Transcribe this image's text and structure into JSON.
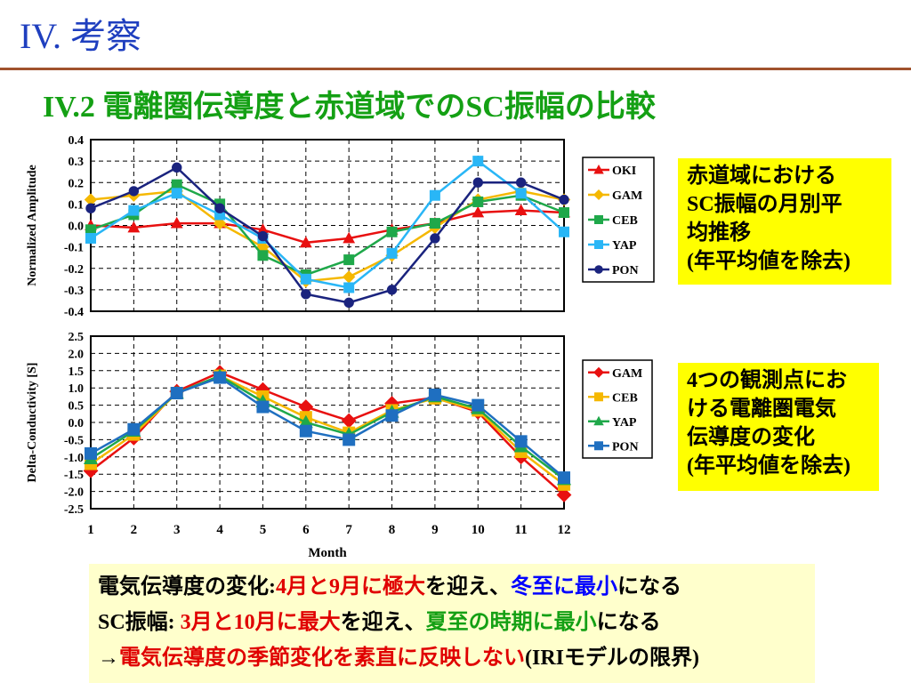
{
  "slide": {
    "title": "IV. 考察",
    "subtitle": "IV.2 電離圏伝導度と赤道域でのSC振幅の比較"
  },
  "notes": {
    "top_lines": [
      "赤道域における",
      "SC振幅の月別平",
      "均推移",
      "(年平均値を除去)"
    ],
    "bottom_lines": [
      "4つの観測点にお",
      "ける電離圏電気",
      "伝導度の変化",
      "(年平均値を除去)"
    ]
  },
  "summary": {
    "line1": {
      "p1": "電気伝導度の変化:",
      "p2": "4月と9月に極大",
      "p3": "を迎え、",
      "p4": "冬至に最小",
      "p5": "になる"
    },
    "line2": {
      "p1": "SC振幅: ",
      "p2": "3月と10月に最大",
      "p3": "を迎え、",
      "p4": "夏至の時期に最小",
      "p5": "になる"
    },
    "line3": {
      "p1": "→",
      "p2": "電気伝導度の季節変化を素直に反映しない",
      "p3": "(IRIモデルの限界)"
    }
  },
  "chart_data": [
    {
      "type": "line",
      "ylabel": "Normalized Amplitude",
      "ylim": [
        -0.4,
        0.4
      ],
      "yticks": [
        "0.4",
        "0.3",
        "0.2",
        "0.1",
        "0.0",
        "-0.1",
        "-0.2",
        "-0.3",
        "-0.4"
      ],
      "x": [
        1,
        2,
        3,
        4,
        5,
        6,
        7,
        8,
        9,
        10,
        11,
        12
      ],
      "grid": true,
      "legend_position": "right",
      "series": [
        {
          "name": "OKI",
          "color": "#e81010",
          "marker": "triangle",
          "values": [
            0.0,
            -0.01,
            0.01,
            0.01,
            -0.02,
            -0.08,
            -0.06,
            -0.02,
            0.01,
            0.06,
            0.07,
            0.06
          ]
        },
        {
          "name": "GAM",
          "color": "#f5b800",
          "marker": "diamond",
          "values": [
            0.12,
            0.14,
            0.16,
            0.01,
            -0.1,
            -0.26,
            -0.24,
            -0.14,
            -0.01,
            0.12,
            0.16,
            0.12
          ]
        },
        {
          "name": "CEB",
          "color": "#1fa84a",
          "marker": "square",
          "values": [
            -0.02,
            0.05,
            0.19,
            0.1,
            -0.14,
            -0.23,
            -0.16,
            -0.03,
            0.01,
            0.11,
            0.14,
            0.06
          ]
        },
        {
          "name": "YAP",
          "color": "#29b6f6",
          "marker": "square",
          "values": [
            -0.06,
            0.07,
            0.15,
            0.05,
            -0.06,
            -0.25,
            -0.29,
            -0.13,
            0.14,
            0.3,
            0.15,
            -0.03
          ]
        },
        {
          "name": "PON",
          "color": "#1a237e",
          "marker": "circle",
          "values": [
            0.08,
            0.16,
            0.27,
            0.08,
            -0.05,
            -0.32,
            -0.36,
            -0.3,
            -0.06,
            0.2,
            0.2,
            0.12
          ]
        }
      ]
    },
    {
      "type": "line",
      "ylabel": "Delta-Conductivity [S]",
      "xlabel": "Month",
      "ylim": [
        -2.5,
        2.5
      ],
      "yticks": [
        "2.5",
        "2.0",
        "1.5",
        "1.0",
        "0.5",
        "0.0",
        "-0.5",
        "-1.0",
        "-1.5",
        "-2.0",
        "-2.5"
      ],
      "x": [
        1,
        2,
        3,
        4,
        5,
        6,
        7,
        8,
        9,
        10,
        11,
        12
      ],
      "xticks": [
        "1",
        "2",
        "3",
        "4",
        "5",
        "6",
        "7",
        "8",
        "9",
        "10",
        "11",
        "12"
      ],
      "grid": true,
      "legend_position": "right",
      "series": [
        {
          "name": "GAM",
          "color": "#e81010",
          "marker": "diamond",
          "values": [
            -1.4,
            -0.45,
            0.9,
            1.45,
            0.95,
            0.45,
            0.05,
            0.55,
            0.72,
            0.3,
            -1.0,
            -2.1
          ]
        },
        {
          "name": "CEB",
          "color": "#f5b800",
          "marker": "square",
          "values": [
            -1.2,
            -0.35,
            0.85,
            1.35,
            0.75,
            0.15,
            -0.3,
            0.35,
            0.7,
            0.35,
            -0.85,
            -1.8
          ]
        },
        {
          "name": "YAP",
          "color": "#1fa84a",
          "marker": "triangle",
          "values": [
            -1.05,
            -0.25,
            0.85,
            1.35,
            0.6,
            0.0,
            -0.35,
            0.3,
            0.75,
            0.4,
            -0.7,
            -1.65
          ]
        },
        {
          "name": "PON",
          "color": "#1f6fc0",
          "marker": "square",
          "values": [
            -0.9,
            -0.2,
            0.85,
            1.3,
            0.45,
            -0.25,
            -0.5,
            0.2,
            0.8,
            0.5,
            -0.55,
            -1.6
          ]
        }
      ]
    }
  ]
}
